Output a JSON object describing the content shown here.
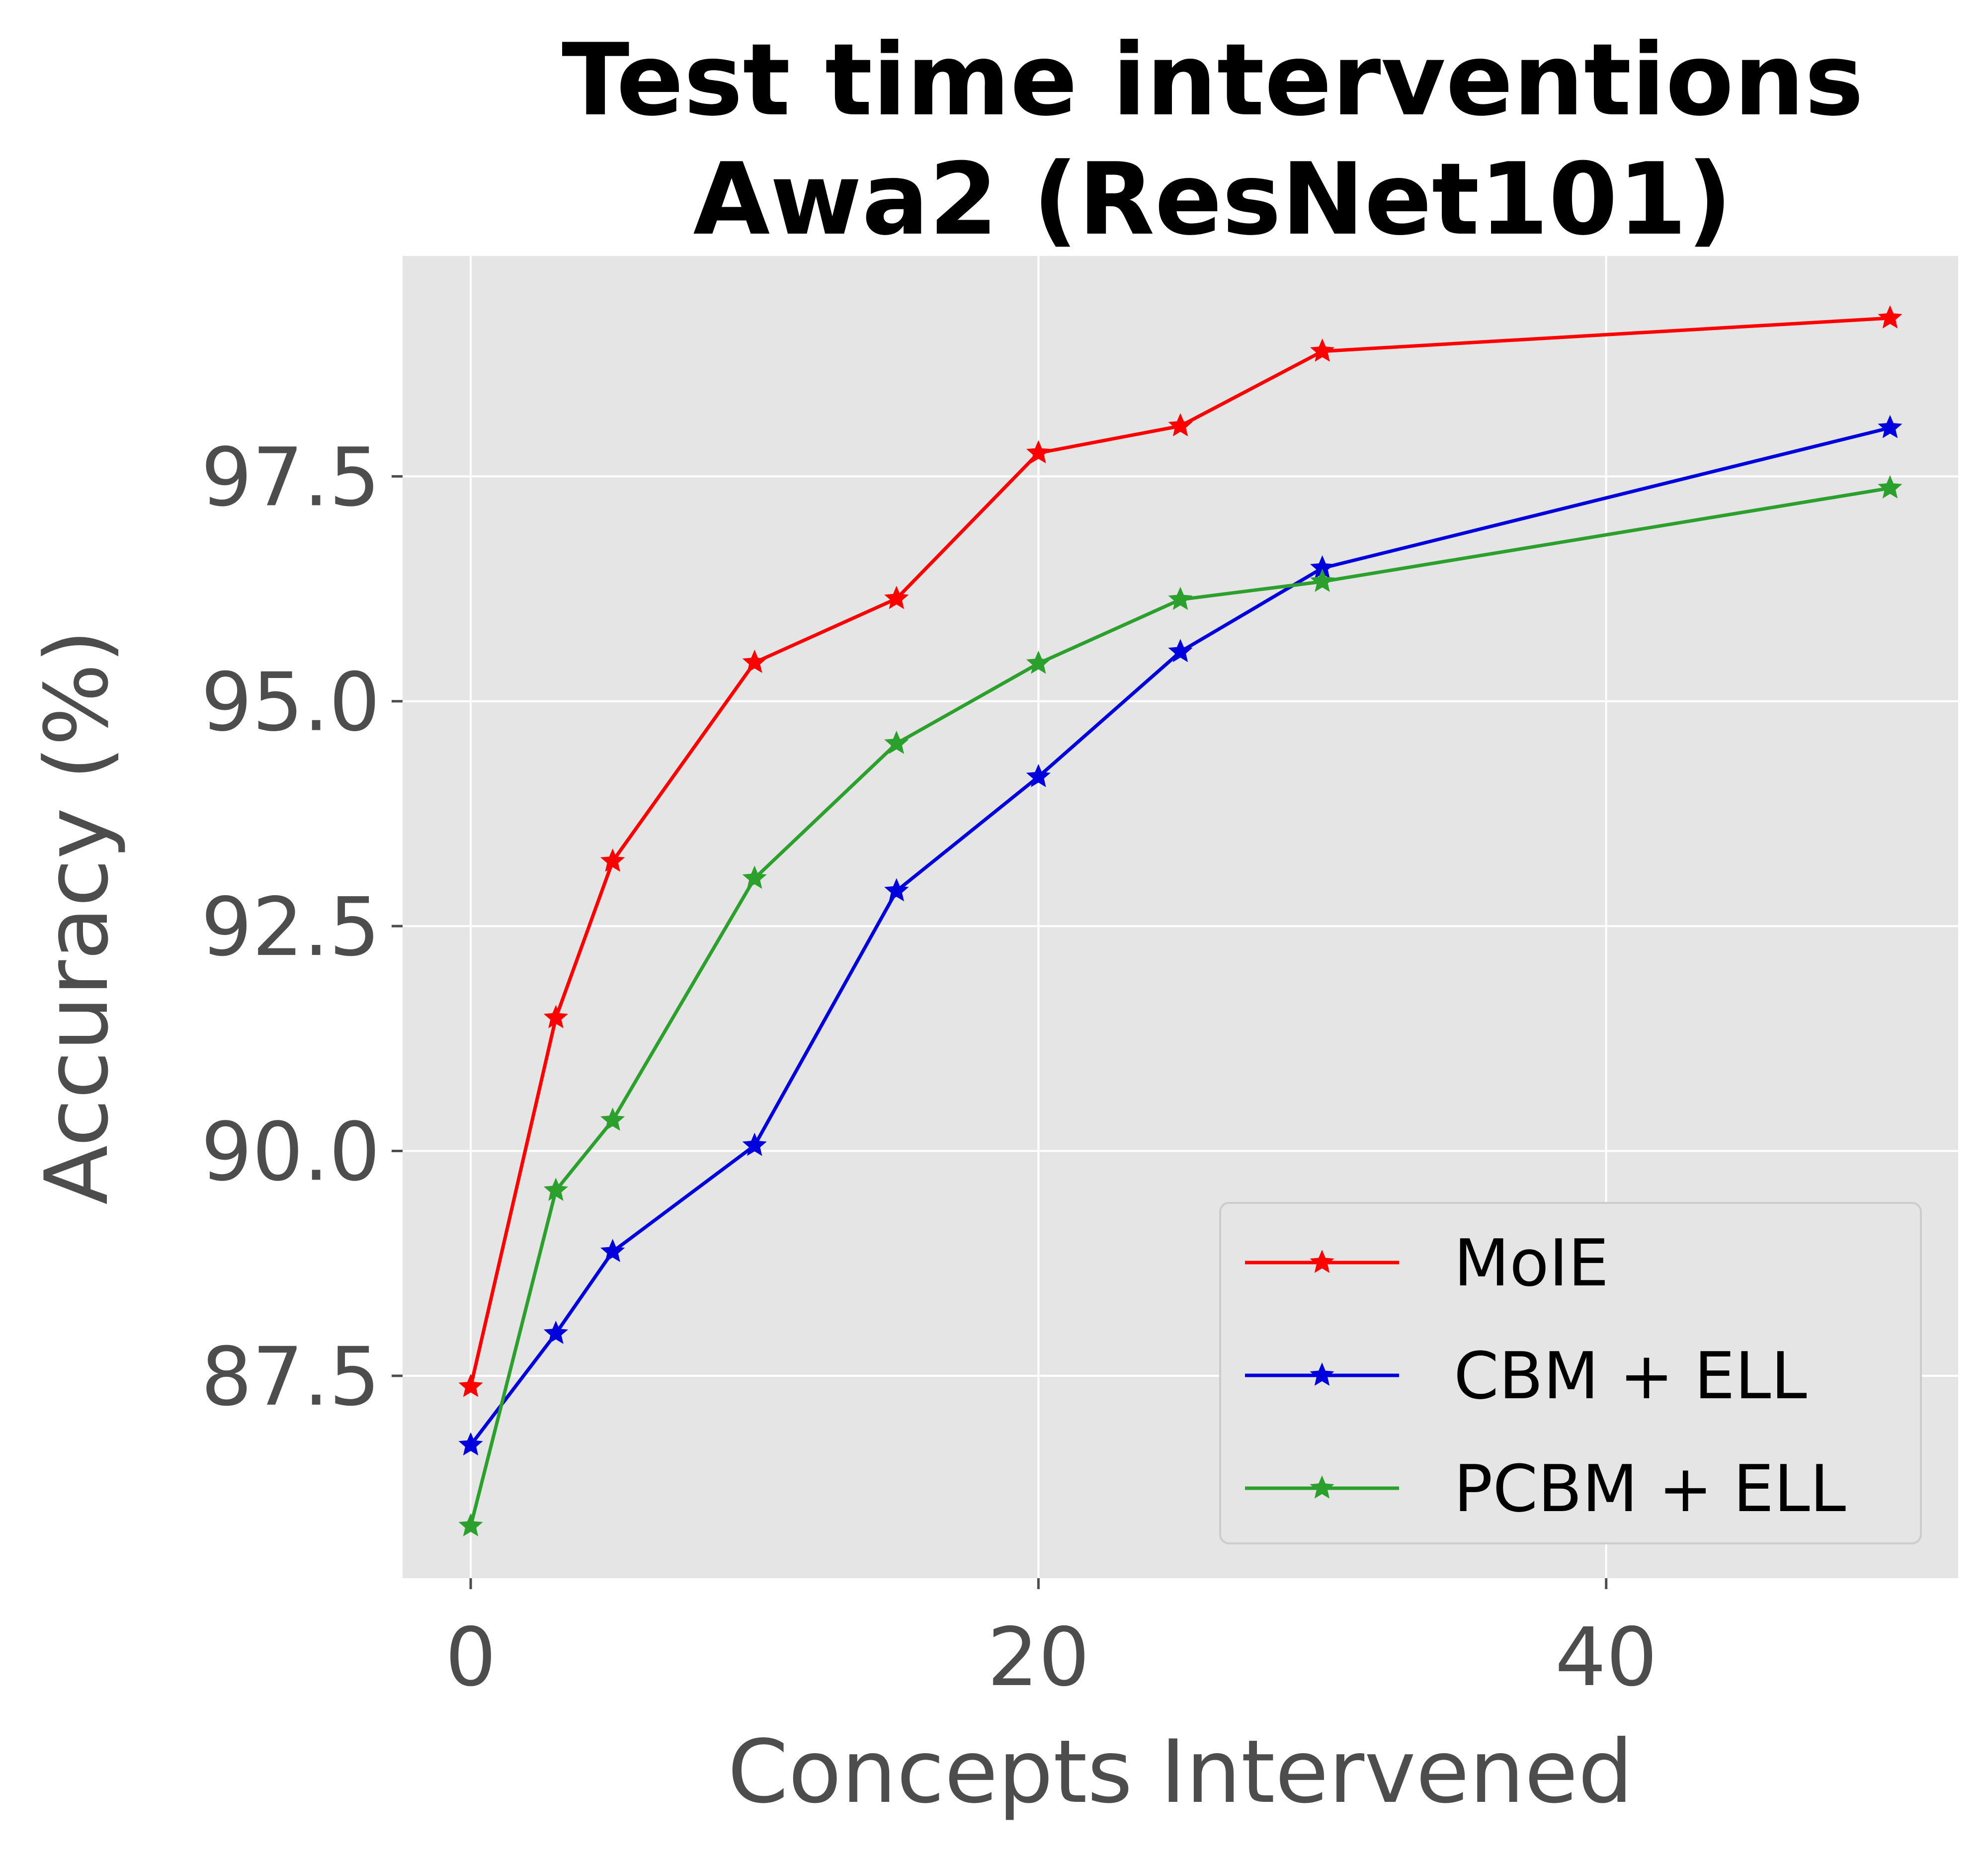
{
  "chart_data": {
    "type": "line",
    "title_lines": [
      "Test time interventions",
      "Awa2 (ResNet101)"
    ],
    "xlabel": "Concepts Intervened",
    "ylabel": "Accuracy (%)",
    "xlim": [
      -2.4,
      52.4
    ],
    "ylim": [
      85.25,
      99.95
    ],
    "xticks": [
      0,
      20,
      40
    ],
    "xtick_labels": [
      "0",
      "20",
      "40"
    ],
    "yticks": [
      87.5,
      90.0,
      92.5,
      95.0,
      97.5
    ],
    "ytick_labels": [
      "87.5",
      "90.0",
      "92.5",
      "95.0",
      "97.5"
    ],
    "grid": true,
    "marker": "star",
    "legend_position": "lower-right",
    "series": [
      {
        "name": "MoIE",
        "color": "#ff0000",
        "x": [
          0,
          3,
          5,
          10,
          15,
          20,
          25,
          30,
          50
        ],
        "y": [
          87.38,
          91.48,
          93.22,
          95.43,
          96.14,
          97.76,
          98.06,
          98.89,
          99.26
        ]
      },
      {
        "name": "CBM + ELL",
        "color": "#0000dd",
        "x": [
          0,
          3,
          5,
          10,
          15,
          20,
          25,
          30,
          50
        ],
        "y": [
          86.73,
          87.97,
          88.88,
          90.06,
          92.89,
          94.16,
          95.55,
          96.48,
          98.04
        ]
      },
      {
        "name": "PCBM + ELL",
        "color": "#2ca02c",
        "x": [
          0,
          3,
          5,
          10,
          15,
          20,
          25,
          30,
          50
        ],
        "y": [
          85.83,
          89.56,
          90.34,
          93.03,
          94.53,
          95.42,
          96.13,
          96.33,
          97.37
        ]
      }
    ]
  }
}
